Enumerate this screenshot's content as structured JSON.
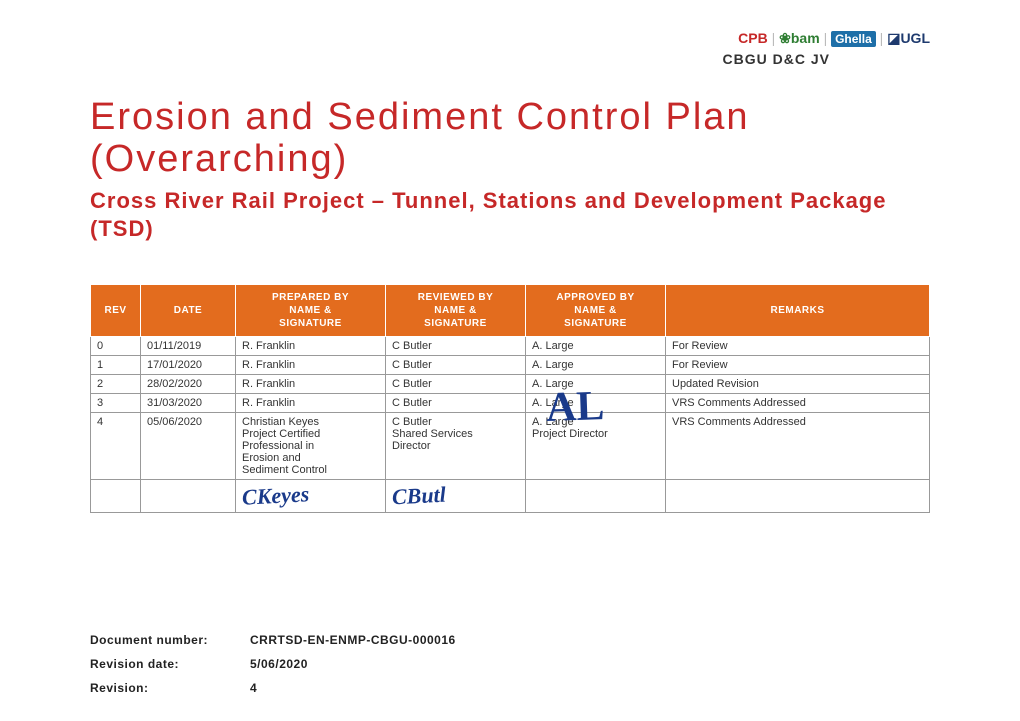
{
  "header": {
    "logos": {
      "cpb": "CPB",
      "bam_icon": "❀",
      "bam": "bam",
      "ghella": "Ghella",
      "ugl_icon": "◪",
      "ugl": "UGL",
      "separator": "|"
    },
    "jv_line": "CBGU D&C JV"
  },
  "title_line1": "Erosion and Sediment Control Plan",
  "title_line2": "(Overarching)",
  "subtitle": "Cross River Rail Project – Tunnel, Stations and Development Package (TSD)",
  "table": {
    "header_bg": "#e36c1e",
    "header_fg": "#ffffff",
    "border_color": "#999999",
    "columns": [
      {
        "key": "rev",
        "label": "REV"
      },
      {
        "key": "date",
        "label": "DATE"
      },
      {
        "key": "prepared",
        "label_l1": "PREPARED BY",
        "label_l2": "NAME &",
        "label_l3": "SIGNATURE"
      },
      {
        "key": "reviewed",
        "label_l1": "REVIEWED BY",
        "label_l2": "NAME &",
        "label_l3": "SIGNATURE"
      },
      {
        "key": "approved",
        "label_l1": "APPROVED BY",
        "label_l2": "NAME &",
        "label_l3": "SIGNATURE"
      },
      {
        "key": "remarks",
        "label": "REMARKS"
      }
    ],
    "rows": [
      {
        "rev": "0",
        "date": "01/11/2019",
        "prepared": "R. Franklin",
        "reviewed": "C Butler",
        "approved": "A. Large",
        "remarks": "For Review"
      },
      {
        "rev": "1",
        "date": "17/01/2020",
        "prepared": "R. Franklin",
        "reviewed": "C Butler",
        "approved": "A. Large",
        "remarks": "For Review"
      },
      {
        "rev": "2",
        "date": "28/02/2020",
        "prepared": "R. Franklin",
        "reviewed": "C Butler",
        "approved": "A. Large",
        "remarks": "Updated Revision"
      },
      {
        "rev": "3",
        "date": "31/03/2020",
        "prepared": "R. Franklin",
        "reviewed": "C Butler",
        "approved": "A. Large",
        "remarks": "VRS Comments Addressed"
      },
      {
        "rev": "4",
        "date": "05/06/2020",
        "prepared_l1": "Christian Keyes",
        "prepared_l2": "Project Certified",
        "prepared_l3": "Professional in",
        "prepared_l4": "Erosion and",
        "prepared_l5": "Sediment Control",
        "reviewed_l1": "C Butler",
        "reviewed_l2": "Shared Services",
        "reviewed_l3": "Director",
        "approved_l1": "A. Large",
        "approved_l2": "Project Director",
        "remarks": "VRS Comments Addressed"
      }
    ],
    "signatures": {
      "prepared": "CKeyes",
      "reviewed": "CButl",
      "approved": "AL",
      "color": "#1a3a8a"
    }
  },
  "meta": {
    "doc_number_label": "Document number:",
    "doc_number_value": "CRRTSD-EN-ENMP-CBGU-000016",
    "rev_date_label": "Revision date:",
    "rev_date_value": "5/06/2020",
    "revision_label": "Revision:",
    "revision_value": "4"
  },
  "colors": {
    "title": "#c62828",
    "accent": "#e36c1e",
    "signature": "#1a3a8a"
  }
}
